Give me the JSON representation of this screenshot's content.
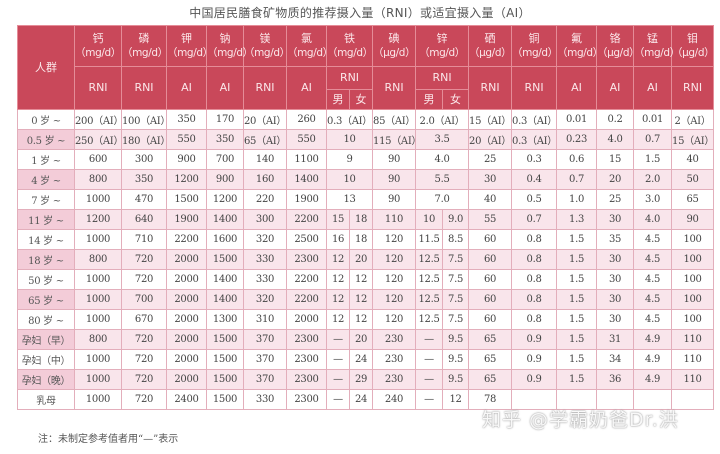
{
  "title": "中国居民膳食矿物质的推荐摄入量（RNI）或适宜摄入量（AI）",
  "colors": {
    "header": "#c9485a",
    "row_alt": "#f9e5eb"
  },
  "group_header": "人群",
  "columns": [
    {
      "name": "钙",
      "unit": "（mg/d）",
      "type": "RNI"
    },
    {
      "name": "磷",
      "unit": "（mg/d）",
      "type": "RNI"
    },
    {
      "name": "钾",
      "unit": "（mg/d）",
      "type": "AI"
    },
    {
      "name": "钠",
      "unit": "（mg/d）",
      "type": "AI"
    },
    {
      "name": "镁",
      "unit": "（mg/d）",
      "type": "RNI"
    },
    {
      "name": "氯",
      "unit": "（mg/d）",
      "type": "AI"
    },
    {
      "name": "铁",
      "unit": "（mg/d）",
      "type": "RNI",
      "sub": [
        "男",
        "女"
      ]
    },
    {
      "name": "碘",
      "unit": "（μg/d）",
      "type": "RNI"
    },
    {
      "name": "锌",
      "unit": "（mg/d）",
      "type": "RNI",
      "sub": [
        "男",
        "女"
      ]
    },
    {
      "name": "硒",
      "unit": "（μg/d）",
      "type": "RNI"
    },
    {
      "name": "铜",
      "unit": "（mg/d）",
      "type": "RNI"
    },
    {
      "name": "氟",
      "unit": "（mg/d）",
      "type": "AI"
    },
    {
      "name": "铬",
      "unit": "（μg/d）",
      "type": "AI"
    },
    {
      "name": "锰",
      "unit": "（mg/d）",
      "type": "AI"
    },
    {
      "name": "钼",
      "unit": "（μg/d）",
      "type": "RNI"
    }
  ],
  "rows": [
    {
      "group": "0 岁 ~",
      "values": [
        "200（AI）",
        "100（AI）",
        "350",
        "170",
        "20（AI）",
        "260",
        "0.3（AI）",
        "85（AI）",
        "2.0（AI）",
        "15（AI）",
        "0.3（AI）",
        "0.01",
        "0.2",
        "0.01",
        "2（AI）"
      ]
    },
    {
      "group": "0.5 岁 ~",
      "values": [
        "250（AI）",
        "180（AI）",
        "550",
        "350",
        "65（AI）",
        "550",
        "10",
        "115（AI）",
        "3.5",
        "20（AI）",
        "0.3（AI）",
        "0.23",
        "4.0",
        "0.7",
        "15（AI）"
      ]
    },
    {
      "group": "1 岁 ~",
      "values": [
        "600",
        "300",
        "900",
        "700",
        "140",
        "1100",
        "9",
        "90",
        "4.0",
        "25",
        "0.3",
        "0.6",
        "15",
        "1.5",
        "40"
      ]
    },
    {
      "group": "4 岁 ~",
      "values": [
        "800",
        "350",
        "1200",
        "900",
        "160",
        "1400",
        "10",
        "90",
        "5.5",
        "30",
        "0.4",
        "0.7",
        "20",
        "2.0",
        "50"
      ]
    },
    {
      "group": "7 岁 ~",
      "values": [
        "1000",
        "470",
        "1500",
        "1200",
        "220",
        "1900",
        "13",
        "90",
        "7.0",
        "40",
        "0.5",
        "1.0",
        "25",
        "3.0",
        "65"
      ]
    },
    {
      "group": "11 岁 ~",
      "values": [
        "1200",
        "640",
        "1900",
        "1400",
        "300",
        "2200",
        [
          "15",
          "18"
        ],
        "110",
        [
          "10",
          "9.0"
        ],
        "55",
        "0.7",
        "1.3",
        "30",
        "4.0",
        "90"
      ]
    },
    {
      "group": "14 岁 ~",
      "values": [
        "1000",
        "710",
        "2200",
        "1600",
        "320",
        "2500",
        [
          "16",
          "18"
        ],
        "120",
        [
          "11.5",
          "8.5"
        ],
        "60",
        "0.8",
        "1.5",
        "35",
        "4.5",
        "100"
      ]
    },
    {
      "group": "18 岁 ~",
      "values": [
        "800",
        "720",
        "2000",
        "1500",
        "330",
        "2300",
        [
          "12",
          "20"
        ],
        "120",
        [
          "12.5",
          "7.5"
        ],
        "60",
        "0.8",
        "1.5",
        "30",
        "4.5",
        "100"
      ]
    },
    {
      "group": "50 岁 ~",
      "values": [
        "1000",
        "720",
        "2000",
        "1400",
        "330",
        "2200",
        [
          "12",
          "12"
        ],
        "120",
        [
          "12.5",
          "7.5"
        ],
        "60",
        "0.8",
        "1.5",
        "30",
        "4.5",
        "100"
      ]
    },
    {
      "group": "65 岁 ~",
      "values": [
        "1000",
        "700",
        "2000",
        "1400",
        "320",
        "2200",
        [
          "12",
          "12"
        ],
        "120",
        [
          "12.5",
          "7.5"
        ],
        "60",
        "0.8",
        "1.5",
        "30",
        "4.5",
        "100"
      ]
    },
    {
      "group": "80 岁 ~",
      "values": [
        "1000",
        "670",
        "2000",
        "1300",
        "310",
        "2000",
        [
          "12",
          "12"
        ],
        "120",
        [
          "12.5",
          "7.5"
        ],
        "60",
        "0.8",
        "1.5",
        "30",
        "4.5",
        "100"
      ]
    },
    {
      "group": "孕妇（早）",
      "values": [
        "800",
        "720",
        "2000",
        "1500",
        "370",
        "2300",
        [
          "—",
          "20"
        ],
        "230",
        [
          "—",
          "9.5"
        ],
        "65",
        "0.9",
        "1.5",
        "31",
        "4.9",
        "110"
      ]
    },
    {
      "group": "孕妇（中）",
      "values": [
        "1000",
        "720",
        "2000",
        "1500",
        "370",
        "2300",
        [
          "—",
          "24"
        ],
        "230",
        [
          "—",
          "9.5"
        ],
        "65",
        "0.9",
        "1.5",
        "34",
        "4.9",
        "110"
      ]
    },
    {
      "group": "孕妇（晚）",
      "values": [
        "1000",
        "720",
        "2000",
        "1500",
        "370",
        "2300",
        [
          "—",
          "29"
        ],
        "230",
        [
          "—",
          "9.5"
        ],
        "65",
        "0.9",
        "1.5",
        "36",
        "4.9",
        "110"
      ]
    },
    {
      "group": "乳母",
      "values": [
        "1000",
        "720",
        "2400",
        "1500",
        "330",
        "2300",
        [
          "—",
          "24"
        ],
        "240",
        [
          "—",
          "12"
        ],
        "78",
        "",
        "",
        "",
        "",
        ""
      ]
    }
  ],
  "note": "注：未制定参考值者用“—”表示",
  "watermark": "知乎 @学霸奶爸Dr.洪"
}
